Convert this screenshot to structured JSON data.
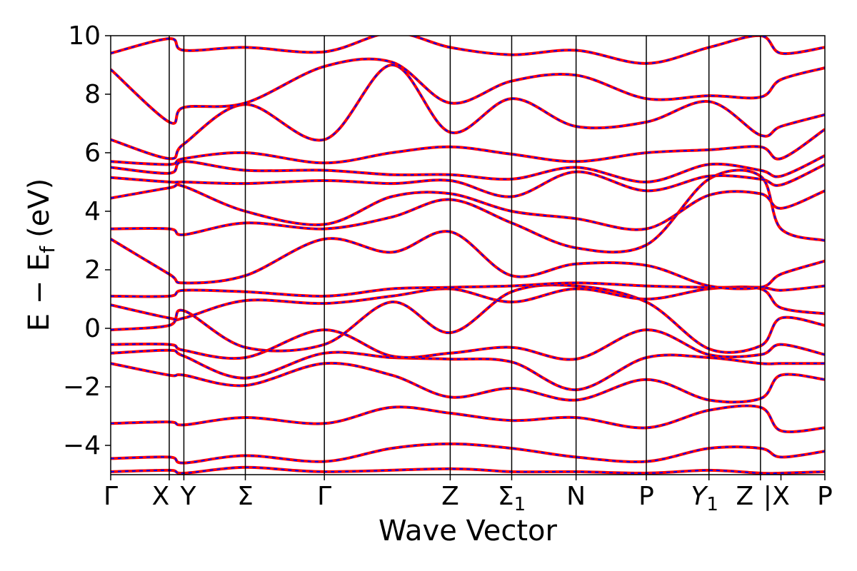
{
  "chart_data": {
    "type": "line",
    "xlabel": "Wave Vector",
    "ylabel": "E − E",
    "ylabel_sub": "f",
    "ylabel_unit": "(eV)",
    "ylim": [
      -5,
      10
    ],
    "yticks": [
      {
        "value": 10,
        "label": "10"
      },
      {
        "value": 8,
        "label": "8"
      },
      {
        "value": 6,
        "label": "6"
      },
      {
        "value": 4,
        "label": "4"
      },
      {
        "value": 2,
        "label": "2"
      },
      {
        "value": 0,
        "label": "0"
      },
      {
        "value": -2,
        "label": "−2"
      },
      {
        "value": -4,
        "label": "−4"
      }
    ],
    "xlim": [
      0,
      12.2
    ],
    "kpoints": [
      {
        "x": 0.0,
        "label": "Γ",
        "sub": ""
      },
      {
        "x": 1.0,
        "label": "X",
        "sub": ""
      },
      {
        "x": 1.25,
        "label": "Y",
        "sub": ""
      },
      {
        "x": 2.3,
        "label": "Σ",
        "sub": ""
      },
      {
        "x": 3.65,
        "label": "Γ",
        "sub": ""
      },
      {
        "x": 5.8,
        "label": "Z",
        "sub": ""
      },
      {
        "x": 6.85,
        "label": "Σ",
        "sub": "1"
      },
      {
        "x": 7.95,
        "label": "N",
        "sub": ""
      },
      {
        "x": 9.15,
        "label": "P",
        "sub": ""
      },
      {
        "x": 10.22,
        "label": "Y",
        "sub": "1"
      },
      {
        "x": 11.1,
        "label": "Z",
        "sub": ""
      },
      {
        "x": 11.1,
        "label": "|",
        "sub": ""
      },
      {
        "x": 11.45,
        "label": "X",
        "sub": ""
      },
      {
        "x": 12.2,
        "label": "P",
        "sub": ""
      }
    ],
    "separators": [
      1.0,
      1.25,
      2.3,
      3.65,
      5.8,
      6.85,
      7.95,
      9.15,
      10.22,
      11.1
    ],
    "series_styles": {
      "main": {
        "color": "#ff0000",
        "width": 4
      },
      "overlay": {
        "color": "#0000ff",
        "width": 2,
        "dash": "5,5"
      }
    },
    "bands": [
      [
        [
          0,
          -4.9
        ],
        [
          1.0,
          -4.85
        ],
        [
          1.25,
          -4.95
        ],
        [
          2.3,
          -4.75
        ],
        [
          3.65,
          -4.9
        ],
        [
          5.8,
          -4.8
        ],
        [
          6.85,
          -4.9
        ],
        [
          7.95,
          -4.9
        ],
        [
          9.15,
          -4.95
        ],
        [
          10.22,
          -4.85
        ],
        [
          11.1,
          -4.95
        ],
        [
          11.45,
          -4.95
        ],
        [
          12.2,
          -4.9
        ]
      ],
      [
        [
          0,
          -4.45
        ],
        [
          1.0,
          -4.4
        ],
        [
          1.25,
          -4.6
        ],
        [
          2.3,
          -4.35
        ],
        [
          3.65,
          -4.55
        ],
        [
          4.8,
          -4.1
        ],
        [
          5.8,
          -3.95
        ],
        [
          6.85,
          -4.1
        ],
        [
          7.95,
          -4.4
        ],
        [
          9.15,
          -4.55
        ],
        [
          10.22,
          -4.1
        ],
        [
          11.1,
          -4.1
        ],
        [
          11.45,
          -4.4
        ],
        [
          12.2,
          -4.2
        ]
      ],
      [
        [
          0,
          -3.25
        ],
        [
          1.0,
          -3.2
        ],
        [
          1.25,
          -3.3
        ],
        [
          2.3,
          -3.05
        ],
        [
          3.65,
          -3.25
        ],
        [
          4.8,
          -2.7
        ],
        [
          5.8,
          -2.9
        ],
        [
          6.85,
          -3.15
        ],
        [
          7.95,
          -3.05
        ],
        [
          9.15,
          -3.4
        ],
        [
          10.22,
          -2.8
        ],
        [
          11.1,
          -2.7
        ],
        [
          11.45,
          -3.5
        ],
        [
          12.2,
          -3.4
        ]
      ],
      [
        [
          0,
          -1.2
        ],
        [
          1.0,
          -1.6
        ],
        [
          1.25,
          -1.6
        ],
        [
          2.3,
          -1.95
        ],
        [
          3.65,
          -1.2
        ],
        [
          4.8,
          -1.6
        ],
        [
          5.8,
          -2.35
        ],
        [
          6.85,
          -2.05
        ],
        [
          7.95,
          -2.45
        ],
        [
          9.15,
          -1.75
        ],
        [
          10.22,
          -2.45
        ],
        [
          11.1,
          -2.4
        ],
        [
          11.45,
          -1.6
        ],
        [
          12.2,
          -1.75
        ]
      ],
      [
        [
          0,
          -0.85
        ],
        [
          1.0,
          -0.75
        ],
        [
          1.25,
          -0.95
        ],
        [
          2.3,
          -1.7
        ],
        [
          3.65,
          -0.85
        ],
        [
          4.8,
          -1.0
        ],
        [
          5.8,
          -1.05
        ],
        [
          6.85,
          -1.15
        ],
        [
          7.95,
          -2.1
        ],
        [
          9.15,
          -1.0
        ],
        [
          10.22,
          -1.0
        ],
        [
          11.1,
          -1.2
        ],
        [
          11.45,
          -1.2
        ],
        [
          12.2,
          -1.2
        ]
      ],
      [
        [
          0,
          -0.55
        ],
        [
          1.0,
          -0.55
        ],
        [
          1.25,
          -0.75
        ],
        [
          2.3,
          -1.0
        ],
        [
          3.65,
          -0.05
        ],
        [
          4.8,
          -0.95
        ],
        [
          5.8,
          -0.85
        ],
        [
          6.85,
          -0.65
        ],
        [
          7.95,
          -1.05
        ],
        [
          9.15,
          -0.05
        ],
        [
          10.22,
          -0.9
        ],
        [
          11.1,
          -0.9
        ],
        [
          11.45,
          -0.55
        ],
        [
          12.2,
          -0.9
        ]
      ],
      [
        [
          0,
          -0.05
        ],
        [
          1.0,
          0.1
        ],
        [
          1.25,
          0.6
        ],
        [
          2.3,
          -0.65
        ],
        [
          3.65,
          -0.55
        ],
        [
          4.8,
          0.9
        ],
        [
          5.8,
          -0.15
        ],
        [
          6.85,
          1.25
        ],
        [
          7.95,
          1.45
        ],
        [
          9.15,
          0.9
        ],
        [
          10.22,
          -0.7
        ],
        [
          11.1,
          -0.6
        ],
        [
          11.45,
          0.35
        ],
        [
          12.2,
          0.1
        ]
      ],
      [
        [
          0,
          0.8
        ],
        [
          1.0,
          0.35
        ],
        [
          1.25,
          0.35
        ],
        [
          2.3,
          0.95
        ],
        [
          3.65,
          0.85
        ],
        [
          4.8,
          1.1
        ],
        [
          5.8,
          1.35
        ],
        [
          6.85,
          0.9
        ],
        [
          7.95,
          1.35
        ],
        [
          9.15,
          1.0
        ],
        [
          10.22,
          1.35
        ],
        [
          11.1,
          1.35
        ],
        [
          11.45,
          0.7
        ],
        [
          12.2,
          0.5
        ]
      ],
      [
        [
          0,
          1.1
        ],
        [
          1.0,
          1.1
        ],
        [
          1.25,
          1.3
        ],
        [
          2.3,
          1.25
        ],
        [
          3.65,
          1.1
        ],
        [
          4.8,
          1.35
        ],
        [
          5.8,
          1.4
        ],
        [
          6.85,
          1.45
        ],
        [
          7.95,
          1.55
        ],
        [
          9.15,
          1.45
        ],
        [
          10.22,
          1.4
        ],
        [
          11.1,
          1.4
        ],
        [
          11.45,
          1.3
        ],
        [
          12.2,
          1.45
        ]
      ],
      [
        [
          0,
          3.05
        ],
        [
          1.0,
          1.85
        ],
        [
          1.25,
          1.55
        ],
        [
          2.3,
          1.8
        ],
        [
          3.65,
          3.05
        ],
        [
          4.8,
          2.6
        ],
        [
          5.8,
          3.3
        ],
        [
          6.85,
          1.8
        ],
        [
          7.95,
          2.2
        ],
        [
          9.15,
          2.15
        ],
        [
          10.22,
          1.45
        ],
        [
          11.1,
          1.4
        ],
        [
          11.45,
          1.85
        ],
        [
          12.2,
          2.3
        ]
      ],
      [
        [
          0,
          3.4
        ],
        [
          1.0,
          3.4
        ],
        [
          1.25,
          3.2
        ],
        [
          2.3,
          3.6
        ],
        [
          3.65,
          3.4
        ],
        [
          4.8,
          3.8
        ],
        [
          5.8,
          4.4
        ],
        [
          6.85,
          3.6
        ],
        [
          7.95,
          2.75
        ],
        [
          9.15,
          2.85
        ],
        [
          10.22,
          5.1
        ],
        [
          11.1,
          5.2
        ],
        [
          11.45,
          3.4
        ],
        [
          12.2,
          3.0
        ]
      ],
      [
        [
          0,
          4.45
        ],
        [
          1.0,
          4.8
        ],
        [
          1.25,
          4.85
        ],
        [
          2.3,
          4.0
        ],
        [
          3.65,
          3.55
        ],
        [
          4.8,
          4.5
        ],
        [
          5.8,
          4.6
        ],
        [
          6.85,
          4.0
        ],
        [
          7.95,
          3.75
        ],
        [
          9.15,
          3.4
        ],
        [
          10.22,
          4.55
        ],
        [
          11.1,
          4.6
        ],
        [
          11.45,
          4.1
        ],
        [
          12.2,
          4.7
        ]
      ],
      [
        [
          0,
          5.15
        ],
        [
          1.0,
          5.0
        ],
        [
          1.25,
          5.0
        ],
        [
          2.3,
          4.95
        ],
        [
          3.65,
          5.05
        ],
        [
          4.8,
          4.95
        ],
        [
          5.8,
          5.05
        ],
        [
          6.85,
          4.5
        ],
        [
          7.95,
          5.35
        ],
        [
          9.15,
          4.7
        ],
        [
          10.22,
          5.2
        ],
        [
          11.1,
          5.1
        ],
        [
          11.45,
          4.9
        ],
        [
          12.2,
          5.6
        ]
      ],
      [
        [
          0,
          5.5
        ],
        [
          1.0,
          5.3
        ],
        [
          1.25,
          5.7
        ],
        [
          2.3,
          5.4
        ],
        [
          3.65,
          5.4
        ],
        [
          4.8,
          5.25
        ],
        [
          5.8,
          5.25
        ],
        [
          6.85,
          5.1
        ],
        [
          7.95,
          5.5
        ],
        [
          9.15,
          5.0
        ],
        [
          10.22,
          5.6
        ],
        [
          11.1,
          5.4
        ],
        [
          11.45,
          5.2
        ],
        [
          12.2,
          5.9
        ]
      ],
      [
        [
          0,
          5.7
        ],
        [
          1.0,
          5.6
        ],
        [
          1.25,
          5.8
        ],
        [
          2.3,
          6.0
        ],
        [
          3.65,
          5.65
        ],
        [
          4.8,
          6.0
        ],
        [
          5.8,
          6.2
        ],
        [
          6.85,
          5.95
        ],
        [
          7.95,
          5.7
        ],
        [
          9.15,
          6.0
        ],
        [
          10.22,
          6.1
        ],
        [
          11.1,
          6.2
        ],
        [
          11.45,
          5.8
        ],
        [
          12.2,
          6.8
        ]
      ],
      [
        [
          0,
          6.45
        ],
        [
          1.0,
          5.8
        ],
        [
          1.25,
          6.3
        ],
        [
          2.3,
          7.65
        ],
        [
          3.65,
          6.45
        ],
        [
          4.8,
          9.0
        ],
        [
          5.8,
          6.7
        ],
        [
          6.85,
          7.85
        ],
        [
          7.95,
          6.9
        ],
        [
          9.15,
          7.05
        ],
        [
          10.22,
          7.75
        ],
        [
          11.1,
          6.6
        ],
        [
          11.45,
          6.9
        ],
        [
          12.2,
          7.3
        ]
      ],
      [
        [
          0,
          8.85
        ],
        [
          1.0,
          7.05
        ],
        [
          1.25,
          7.55
        ],
        [
          2.3,
          7.7
        ],
        [
          3.65,
          8.95
        ],
        [
          4.8,
          9.1
        ],
        [
          5.8,
          7.7
        ],
        [
          6.85,
          8.45
        ],
        [
          7.95,
          8.65
        ],
        [
          9.15,
          7.85
        ],
        [
          10.22,
          7.95
        ],
        [
          11.1,
          7.9
        ],
        [
          11.45,
          8.5
        ],
        [
          12.2,
          8.9
        ]
      ],
      [
        [
          0,
          9.4
        ],
        [
          1.0,
          9.9
        ],
        [
          1.25,
          9.5
        ],
        [
          2.3,
          9.6
        ],
        [
          3.65,
          9.45
        ],
        [
          4.8,
          10.1
        ],
        [
          5.8,
          9.6
        ],
        [
          6.85,
          9.35
        ],
        [
          7.95,
          9.5
        ],
        [
          9.15,
          9.05
        ],
        [
          10.22,
          9.6
        ],
        [
          11.1,
          10.0
        ],
        [
          11.45,
          9.4
        ],
        [
          12.2,
          9.6
        ]
      ]
    ]
  }
}
